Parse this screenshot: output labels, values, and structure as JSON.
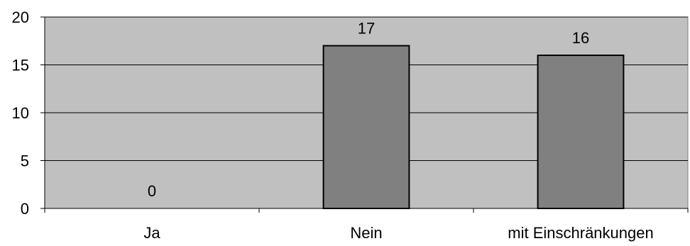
{
  "chart_data": {
    "type": "bar",
    "title": "",
    "xlabel": "",
    "ylabel": "",
    "categories": [
      "Ja",
      "Nein",
      "mit Einschränkungen"
    ],
    "values": [
      0,
      17,
      16
    ],
    "value_labels": [
      "0",
      "17",
      "16"
    ],
    "ylim": [
      0,
      20
    ],
    "yticks": [
      0,
      5,
      10,
      15,
      20
    ],
    "ytick_labels": [
      "0",
      "5",
      "10",
      "15",
      "20"
    ],
    "grid": true,
    "legend": "none",
    "colors": {
      "plot_background": "#c0c0c0",
      "bar_fill": "#808080",
      "bar_stroke": "#000000",
      "gridline": "#000000",
      "text": "#000000"
    }
  }
}
